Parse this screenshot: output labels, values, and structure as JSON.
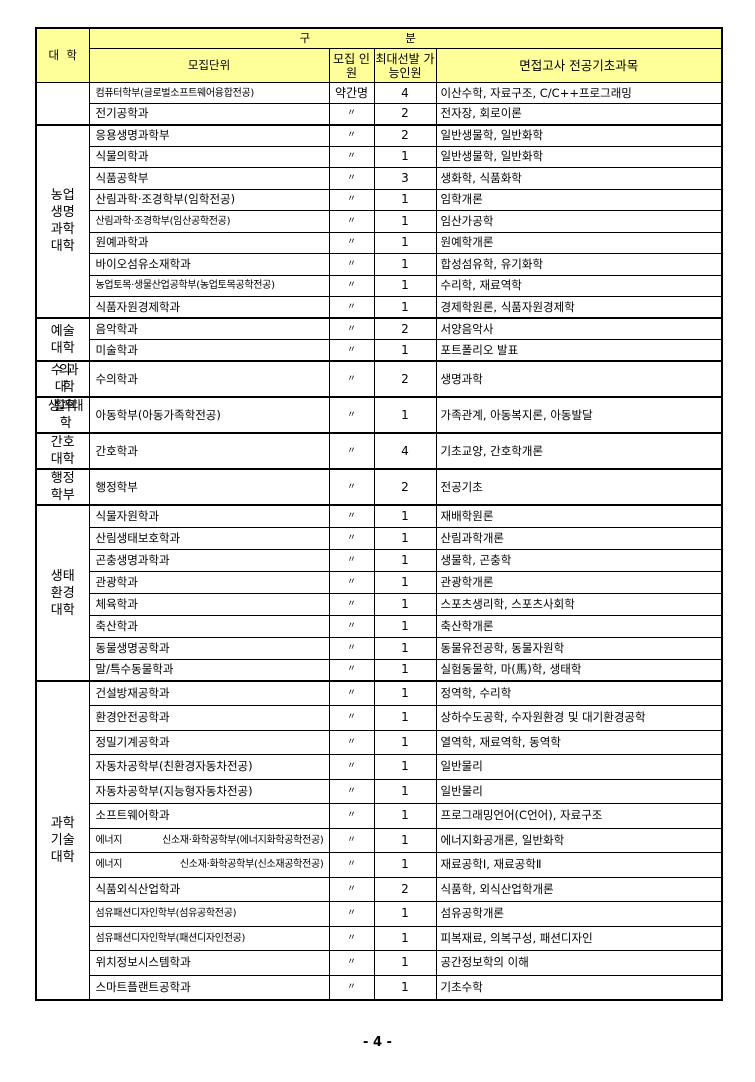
{
  "header": {
    "college": "대  학",
    "category": "구분",
    "unit": "모집단위",
    "recruit": "모집 인원",
    "max": "최대선발 가능인원",
    "subjects": "면접고사 전공기초과목"
  },
  "groups": [
    {
      "college": "",
      "rows": [
        {
          "unit": "컴퓨터학부(글로벌소프트웨어융합전공)",
          "recruit": "약간명",
          "max": "4",
          "subjects": "이산수학, 자료구조, C/C++프로그래밍"
        },
        {
          "unit": "전기공학과",
          "recruit": "〃",
          "max": "2",
          "subjects": "전자장, 회로이론"
        }
      ]
    },
    {
      "college": "농업생명과학대학",
      "rows": [
        {
          "unit": "응용생명과학부",
          "recruit": "〃",
          "max": "2",
          "subjects": "일반생물학, 일반화학"
        },
        {
          "unit": "식물의학과",
          "recruit": "〃",
          "max": "1",
          "subjects": "일반생물학, 일반화학"
        },
        {
          "unit": "식품공학부",
          "recruit": "〃",
          "max": "3",
          "subjects": "생화학, 식품화학"
        },
        {
          "unit": "산림과학·조경학부(임학전공)",
          "recruit": "〃",
          "max": "1",
          "subjects": "임학개론"
        },
        {
          "unit": "산림과학·조경학부(임산공학전공)",
          "recruit": "〃",
          "max": "1",
          "subjects": "임산가공학"
        },
        {
          "unit": "원예과학과",
          "recruit": "〃",
          "max": "1",
          "subjects": "원예학개론"
        },
        {
          "unit": "바이오섬유소재학과",
          "recruit": "〃",
          "max": "1",
          "subjects": "합성섬유학, 유기화학"
        },
        {
          "unit": "농업토목·생물산업공학부(농업토목공학전공)",
          "recruit": "〃",
          "max": "1",
          "subjects": "수리학, 재료역학"
        },
        {
          "unit": "식품자원경제학과",
          "recruit": "〃",
          "max": "1",
          "subjects": "경제학원론, 식품자원경제학"
        }
      ]
    },
    {
      "college": "예술대학",
      "rows": [
        {
          "unit": "음악학과",
          "recruit": "〃",
          "max": "2",
          "subjects": "서양음악사"
        },
        {
          "unit": "미술학과",
          "recruit": "〃",
          "max": "1",
          "subjects": "포트폴리오 발표"
        }
      ]
    },
    {
      "college": "수의과대학",
      "rows": [
        {
          "unit": "수의학과",
          "recruit": "〃",
          "max": "2",
          "subjects": "생명과학"
        }
      ]
    },
    {
      "college": "생활과학대학",
      "rows": [
        {
          "unit": "아동학부(아동가족학전공)",
          "recruit": "〃",
          "max": "1",
          "subjects": "가족관계, 아동복지론, 아동발달"
        }
      ]
    },
    {
      "college": "간호대학",
      "rows": [
        {
          "unit": "간호학과",
          "recruit": "〃",
          "max": "4",
          "subjects": "기초교양, 간호학개론"
        }
      ]
    },
    {
      "college": "행정학부",
      "rows": [
        {
          "unit": "행정학부",
          "recruit": "〃",
          "max": "2",
          "subjects": "전공기초"
        }
      ]
    },
    {
      "college": "생태환경대학",
      "rows": [
        {
          "unit": "식물자원학과",
          "recruit": "〃",
          "max": "1",
          "subjects": "재배학원론"
        },
        {
          "unit": "산림생태보호학과",
          "recruit": "〃",
          "max": "1",
          "subjects": "산림과학개론"
        },
        {
          "unit": "곤충생명과학과",
          "recruit": "〃",
          "max": "1",
          "subjects": "생물학, 곤충학"
        },
        {
          "unit": "관광학과",
          "recruit": "〃",
          "max": "1",
          "subjects": "관광학개론"
        },
        {
          "unit": "체육학과",
          "recruit": "〃",
          "max": "1",
          "subjects": "스포츠생리학, 스포츠사회학"
        },
        {
          "unit": "축산학과",
          "recruit": "〃",
          "max": "1",
          "subjects": "축산학개론"
        },
        {
          "unit": "동물생명공학과",
          "recruit": "〃",
          "max": "1",
          "subjects": "동물유전공학, 동물자원학"
        },
        {
          "unit": "말/특수동물학과",
          "recruit": "〃",
          "max": "1",
          "subjects": "실험동물학, 마(馬)학, 생태학"
        }
      ]
    },
    {
      "college": "과학기술대학",
      "rows": [
        {
          "unit": "건설방재공학과",
          "recruit": "〃",
          "max": "1",
          "subjects": "정역학, 수리학"
        },
        {
          "unit": "환경안전공학과",
          "recruit": "〃",
          "max": "1",
          "subjects": "상하수도공학, 수자원환경 및 대기환경공학"
        },
        {
          "unit": "정밀기계공학과",
          "recruit": "〃",
          "max": "1",
          "subjects": "열역학, 재료역학, 동역학"
        },
        {
          "unit": "자동차공학부(친환경자동차전공)",
          "recruit": "〃",
          "max": "1",
          "subjects": "일반물리"
        },
        {
          "unit": "자동차공학부(지능형자동차전공)",
          "recruit": "〃",
          "max": "1",
          "subjects": "일반물리"
        },
        {
          "unit": "소프트웨어학과",
          "recruit": "〃",
          "max": "1",
          "subjects": "프로그래밍언어(C언어), 자료구조"
        },
        {
          "unit": "에너지 신소재·화학공학부(에너지화학공학전공)",
          "recruit": "〃",
          "max": "1",
          "subjects": "에너지화공개론, 일반화학"
        },
        {
          "unit": "에너지 신소재·화학공학부(신소재공학전공)",
          "recruit": "〃",
          "max": "1",
          "subjects": "재료공학Ⅰ, 재료공학Ⅱ"
        },
        {
          "unit": "식품외식산업학과",
          "recruit": "〃",
          "max": "2",
          "subjects": "식품학, 외식산업학개론"
        },
        {
          "unit": "섬유패션디자인학부(섬유공학전공)",
          "recruit": "〃",
          "max": "1",
          "subjects": "섬유공학개론"
        },
        {
          "unit": "섬유패션디자인학부(패션디자인전공)",
          "recruit": "〃",
          "max": "1",
          "subjects": "피복재료, 의복구성, 패션디자인"
        },
        {
          "unit": "위치정보시스템학과",
          "recruit": "〃",
          "max": "1",
          "subjects": "공간정보학의 이해"
        },
        {
          "unit": "스마트플랜트공학과",
          "recruit": "〃",
          "max": "1",
          "subjects": "기초수학"
        }
      ]
    }
  ],
  "page_number": "- 4 -"
}
